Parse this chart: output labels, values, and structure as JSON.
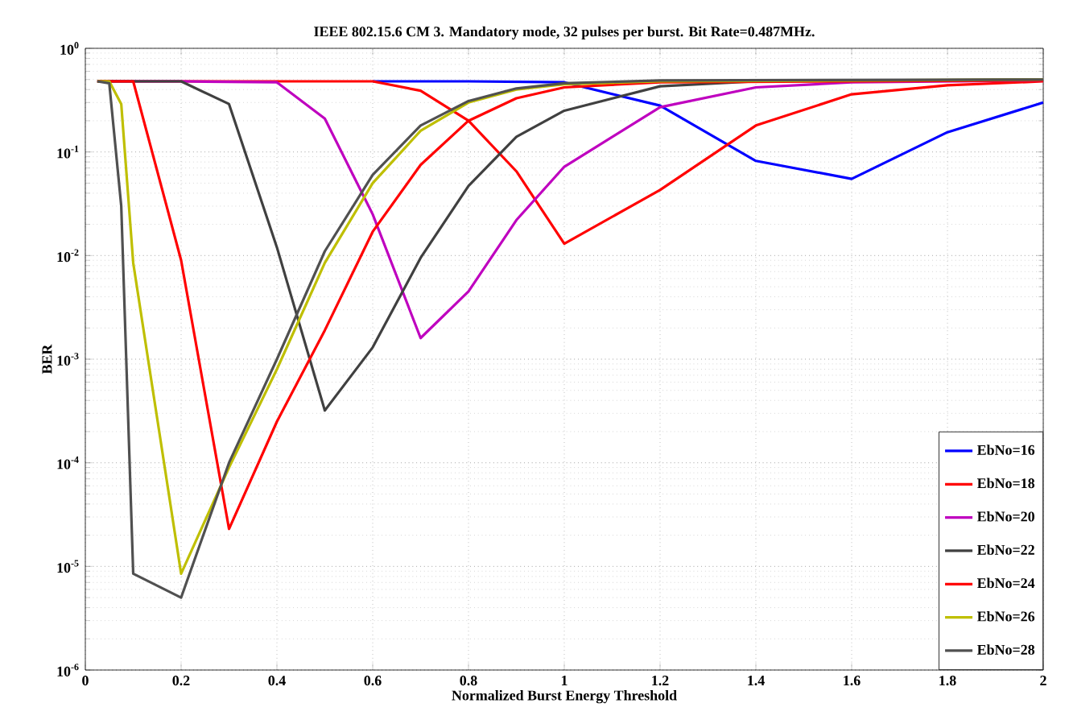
{
  "chart_data": {
    "type": "line",
    "title": "IEEE 802.15.6 CM 3. Mandatory mode, 32 pulses per burst. Bit Rate=0.487MHz.",
    "xlabel": "Normalized Burst Energy Threshold",
    "ylabel": "BER",
    "log": "y",
    "grid": true,
    "legend": "bottom right",
    "line_style": "solid",
    "marker": "none",
    "xlim": [
      0,
      2
    ],
    "ylim": [
      1e-06,
      1
    ],
    "xticks": [
      0,
      0.2,
      0.4,
      0.6,
      0.8,
      1,
      1.2,
      1.4,
      1.6,
      1.8,
      2
    ],
    "yticks": [
      {
        "value": 1e-06,
        "label": "10$^{-6}$"
      },
      {
        "value": 1e-05,
        "label": "10$^{-5}$"
      },
      {
        "value": 0.0001,
        "label": "10$^{-4}$"
      },
      {
        "value": 0.001,
        "label": "10$^{-3}$"
      },
      {
        "value": 0.01,
        "label": "10$^{-2}$"
      },
      {
        "value": 0.1,
        "label": "10$^{-1}$"
      },
      {
        "value": 1,
        "label": "10$^{0}$"
      }
    ],
    "series": [
      {
        "name": "EbNo=16",
        "color": "#0000ff",
        "x": [
          0.6,
          0.8,
          1.0,
          1.2,
          1.4,
          1.6,
          1.8,
          2.0
        ],
        "values": [
          0.48,
          0.48,
          0.47,
          0.28,
          0.082,
          0.055,
          0.155,
          0.3
        ]
      },
      {
        "name": "EbNo=18",
        "color": "#ff0000",
        "x": [
          0.025,
          0.2,
          0.4,
          0.6,
          0.7,
          0.8,
          0.9,
          1.0,
          1.2,
          1.4,
          1.6,
          1.8,
          2.0
        ],
        "values": [
          0.48,
          0.48,
          0.48,
          0.48,
          0.39,
          0.2,
          0.065,
          0.013,
          0.043,
          0.18,
          0.36,
          0.44,
          0.48
        ]
      },
      {
        "name": "EbNo=20",
        "color": "#bf00bf",
        "x": [
          0.025,
          0.2,
          0.4,
          0.5,
          0.6,
          0.7,
          0.8,
          0.9,
          1.0,
          1.2,
          1.4,
          1.6,
          2.0
        ],
        "values": [
          0.48,
          0.48,
          0.47,
          0.21,
          0.025,
          0.0016,
          0.0045,
          0.022,
          0.072,
          0.27,
          0.42,
          0.47,
          0.49
        ]
      },
      {
        "name": "EbNo=22",
        "color": "#404040",
        "x": [
          0.025,
          0.2,
          0.3,
          0.4,
          0.5,
          0.6,
          0.7,
          0.8,
          0.9,
          1.0,
          1.2,
          1.4,
          2.0
        ],
        "values": [
          0.48,
          0.48,
          0.29,
          0.012,
          0.00032,
          0.0013,
          0.0095,
          0.047,
          0.14,
          0.25,
          0.43,
          0.48,
          0.5
        ]
      },
      {
        "name": "EbNo=24",
        "color": "#ff0000",
        "x": [
          0.025,
          0.1,
          0.2,
          0.3,
          0.4,
          0.5,
          0.6,
          0.7,
          0.8,
          0.9,
          1.0,
          1.2,
          2.0
        ],
        "values": [
          0.48,
          0.48,
          0.009,
          2.3e-05,
          0.00025,
          0.0019,
          0.017,
          0.075,
          0.2,
          0.33,
          0.42,
          0.47,
          0.49
        ]
      },
      {
        "name": "EbNo=26",
        "color": "#bfbf00",
        "x": [
          0.025,
          0.05,
          0.075,
          0.1,
          0.2,
          0.3,
          0.4,
          0.5,
          0.6,
          0.7,
          0.8,
          0.9,
          1.0,
          1.2,
          2.0
        ],
        "values": [
          0.48,
          0.48,
          0.29,
          0.0085,
          8.5e-06,
          9e-05,
          0.0008,
          0.0085,
          0.05,
          0.16,
          0.3,
          0.4,
          0.45,
          0.48,
          0.5
        ]
      },
      {
        "name": "EbNo=28",
        "color": "#505050",
        "x": [
          0.025,
          0.05,
          0.075,
          0.1,
          0.2,
          0.3,
          0.4,
          0.5,
          0.6,
          0.7,
          0.8,
          0.9,
          1.0,
          1.2,
          2.0
        ],
        "values": [
          0.48,
          0.46,
          0.03,
          8.5e-06,
          5e-06,
          0.0001,
          0.001,
          0.011,
          0.06,
          0.18,
          0.31,
          0.41,
          0.46,
          0.49,
          0.5
        ]
      }
    ]
  }
}
